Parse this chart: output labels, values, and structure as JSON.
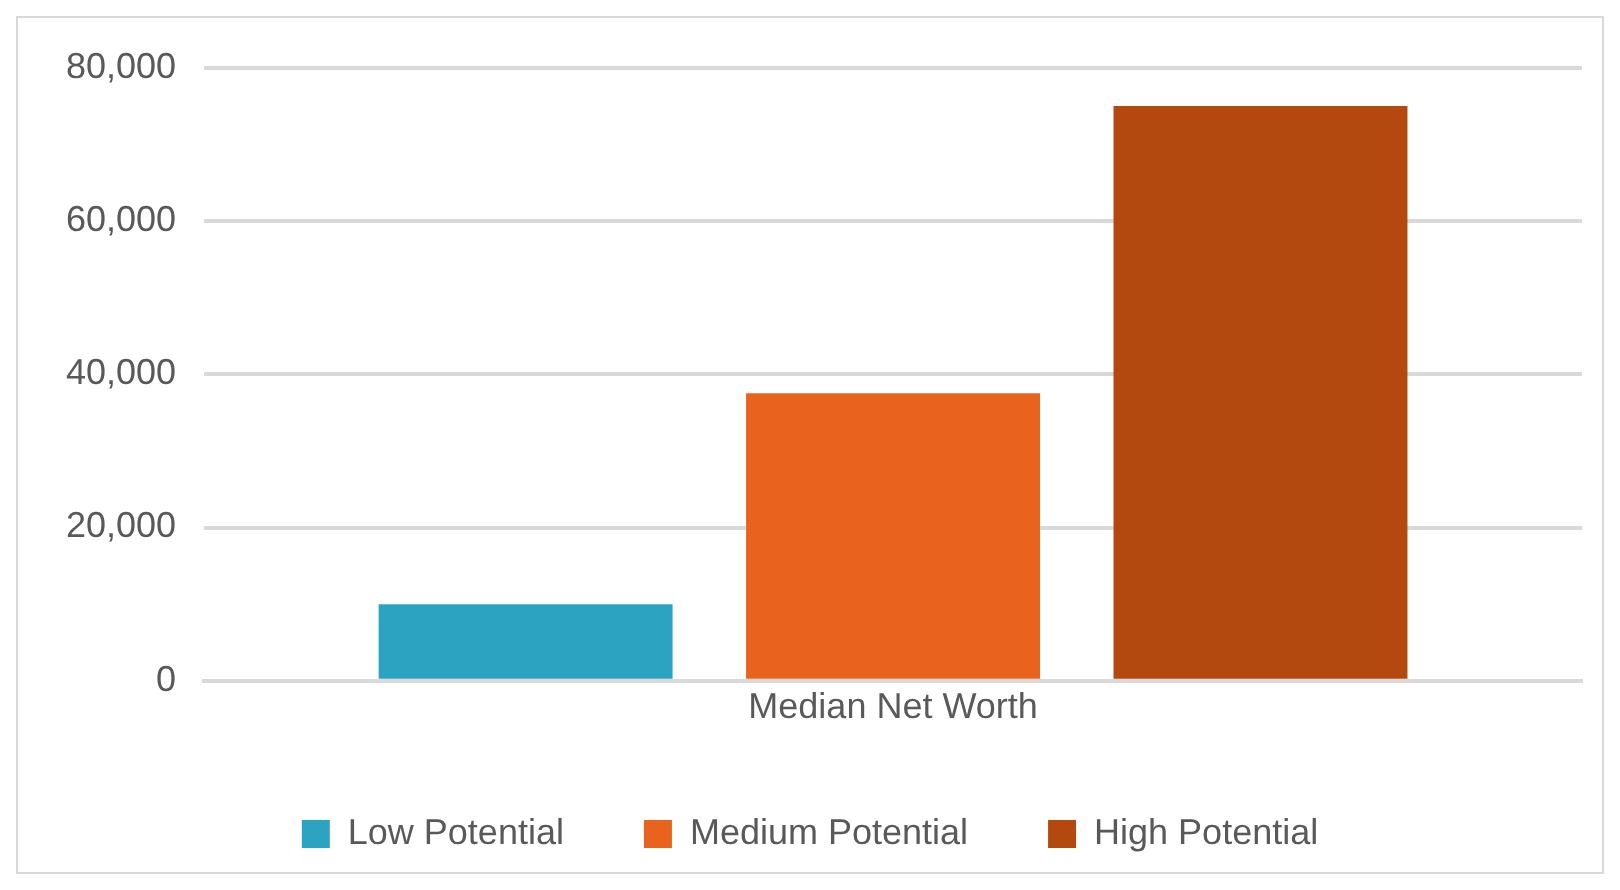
{
  "chart_data": {
    "type": "bar",
    "categories": [
      "Median Net Worth"
    ],
    "series": [
      {
        "name": "Low Potential",
        "color": "#2ca3c0",
        "values": [
          10000
        ]
      },
      {
        "name": "Medium Potential",
        "color": "#e9631e",
        "values": [
          37500
        ]
      },
      {
        "name": "High Potential",
        "color": "#b4490f",
        "values": [
          75000
        ]
      }
    ],
    "ylim": [
      0,
      80000
    ],
    "yticks": [
      0,
      {
        "value": 20000,
        "label": "20,000"
      },
      {
        "value": 40000,
        "label": "40,000"
      },
      {
        "value": 60000,
        "label": "60,000"
      },
      {
        "value": 80000,
        "label": "80,000"
      }
    ],
    "grid": "y",
    "legend": "bottom"
  }
}
